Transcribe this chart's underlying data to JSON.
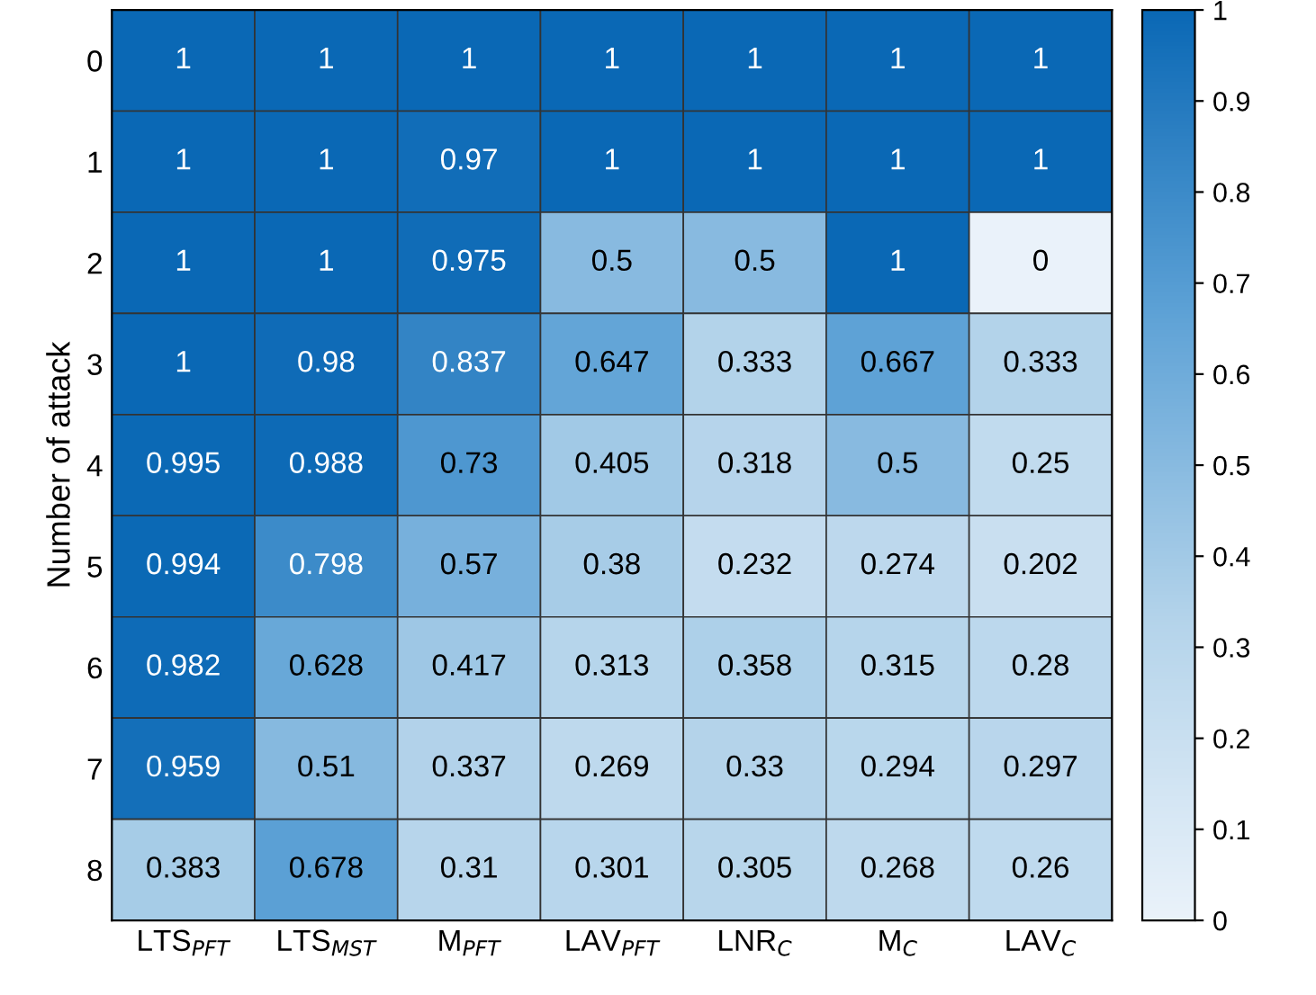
{
  "chart_data": {
    "type": "heatmap",
    "ylabel": "Number of attack",
    "categories": [
      "LTS$_{PFT}$",
      "LTS$_{MST}$",
      "M$_{PFT}$",
      "LAV$_{PFT}$",
      "LNR$_{C}$",
      "M$_{C}$",
      "LAV$_{C}$"
    ],
    "y_categories": [
      "0",
      "1",
      "2",
      "3",
      "4",
      "5",
      "6",
      "7",
      "8"
    ],
    "cells": [
      [
        1,
        1,
        1,
        1,
        1,
        1,
        1
      ],
      [
        1,
        1,
        0.97,
        1,
        1,
        1,
        1
      ],
      [
        1,
        1,
        0.975,
        0.5,
        0.5,
        1,
        0
      ],
      [
        1,
        0.98,
        0.837,
        0.647,
        0.333,
        0.667,
        0.333
      ],
      [
        0.995,
        0.988,
        0.73,
        0.405,
        0.318,
        0.5,
        0.25
      ],
      [
        0.994,
        0.798,
        0.57,
        0.38,
        0.232,
        0.274,
        0.202
      ],
      [
        0.982,
        0.628,
        0.417,
        0.313,
        0.358,
        0.315,
        0.28
      ],
      [
        0.959,
        0.51,
        0.337,
        0.269,
        0.33,
        0.294,
        0.297
      ],
      [
        0.383,
        0.678,
        0.31,
        0.301,
        0.305,
        0.268,
        0.26
      ]
    ],
    "data_labels": true,
    "clim": [
      0,
      1
    ],
    "cticks": [
      0,
      0.1,
      0.2,
      0.3,
      0.4,
      0.5,
      0.6,
      0.7,
      0.8,
      0.9,
      1
    ]
  }
}
